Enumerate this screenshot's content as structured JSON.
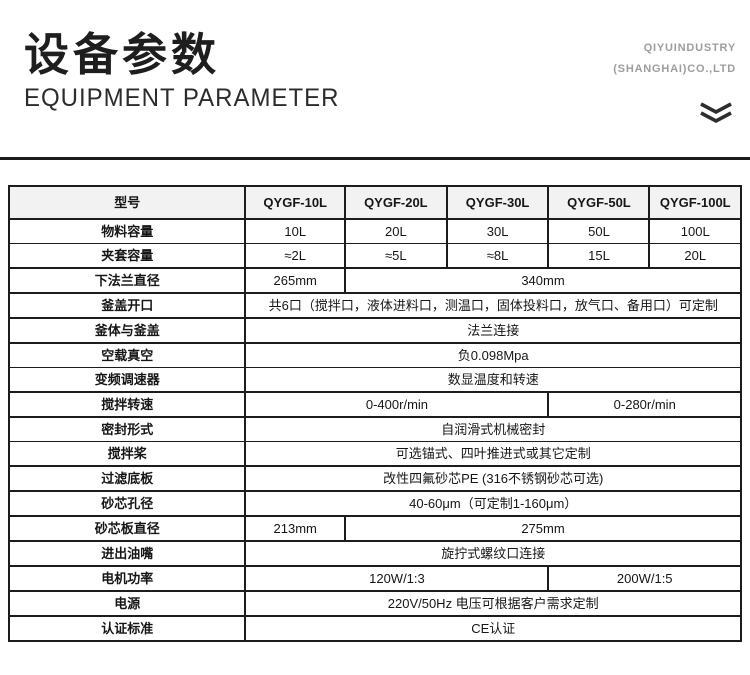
{
  "page": {
    "title_cn": "设备参数",
    "title_en": "EQUIPMENT PARAMETER",
    "company_line1": "QIYUINDUSTRY",
    "company_line2": "(SHANGHAI)CO.,LTD",
    "chevron_icon": "double-chevron-down-icon"
  },
  "colors": {
    "border": "#1c1c1c",
    "header_bg": "#f2f2f2",
    "text": "#161616",
    "company_text": "#9d9d9d",
    "divider": "#1b1b1b"
  },
  "table": {
    "columns": [
      "型号",
      "QYGF-10L",
      "QYGF-20L",
      "QYGF-30L",
      "QYGF-50L",
      "QYGF-100L"
    ],
    "rows": [
      {
        "label": "物料容量",
        "cells": [
          {
            "text": "10L",
            "span": 1
          },
          {
            "text": "20L",
            "span": 1
          },
          {
            "text": "30L",
            "span": 1
          },
          {
            "text": "50L",
            "span": 1
          },
          {
            "text": "100L",
            "span": 1
          }
        ]
      },
      {
        "label": "夹套容量",
        "cells": [
          {
            "text": "≈2L",
            "span": 1
          },
          {
            "text": "≈5L",
            "span": 1
          },
          {
            "text": "≈8L",
            "span": 1
          },
          {
            "text": "15L",
            "span": 1
          },
          {
            "text": "20L",
            "span": 1
          }
        ]
      },
      {
        "label": "下法兰直径",
        "cells": [
          {
            "text": "265mm",
            "span": 1
          },
          {
            "text": "340mm",
            "span": 4
          }
        ]
      },
      {
        "label": "釜盖开口",
        "cells": [
          {
            "text": "共6口（搅拌口，液体进料口，测温口，固体投料口，放气口、备用口）可定制",
            "span": 5
          }
        ]
      },
      {
        "label": "釜体与釜盖",
        "cells": [
          {
            "text": "法兰连接",
            "span": 5
          }
        ]
      },
      {
        "label": "空载真空",
        "cells": [
          {
            "text": "负0.098Mpa",
            "span": 5
          }
        ]
      },
      {
        "label": "变频调速器",
        "cells": [
          {
            "text": "数显温度和转速",
            "span": 5
          }
        ]
      },
      {
        "label": "搅拌转速",
        "cells": [
          {
            "text": "0-400r/min",
            "span": 3
          },
          {
            "text": "0-280r/min",
            "span": 2
          }
        ]
      },
      {
        "label": "密封形式",
        "cells": [
          {
            "text": "自润滑式机械密封",
            "span": 5
          }
        ]
      },
      {
        "label": "搅拌桨",
        "cells": [
          {
            "text": "可选锚式、四叶推进式或其它定制",
            "span": 5
          }
        ]
      },
      {
        "label": "过滤底板",
        "cells": [
          {
            "text": "改性四氟砂芯PE (316不锈钢砂芯可选)",
            "span": 5
          }
        ]
      },
      {
        "label": "砂芯孔径",
        "cells": [
          {
            "text": "40-60μm（可定制1-160μm）",
            "span": 5
          }
        ]
      },
      {
        "label": "砂芯板直径",
        "cells": [
          {
            "text": "213mm",
            "span": 1
          },
          {
            "text": "275mm",
            "span": 4
          }
        ]
      },
      {
        "label": "进出油嘴",
        "cells": [
          {
            "text": "旋拧式螺纹口连接",
            "span": 5
          }
        ]
      },
      {
        "label": "电机功率",
        "cells": [
          {
            "text": "120W/1:3",
            "span": 3
          },
          {
            "text": "200W/1:5",
            "span": 2
          }
        ]
      },
      {
        "label": "电源",
        "cells": [
          {
            "text": "220V/50Hz 电压可根据客户需求定制",
            "span": 5
          }
        ]
      },
      {
        "label": "认证标准",
        "cells": [
          {
            "text": "CE认证",
            "span": 5
          }
        ]
      }
    ]
  }
}
